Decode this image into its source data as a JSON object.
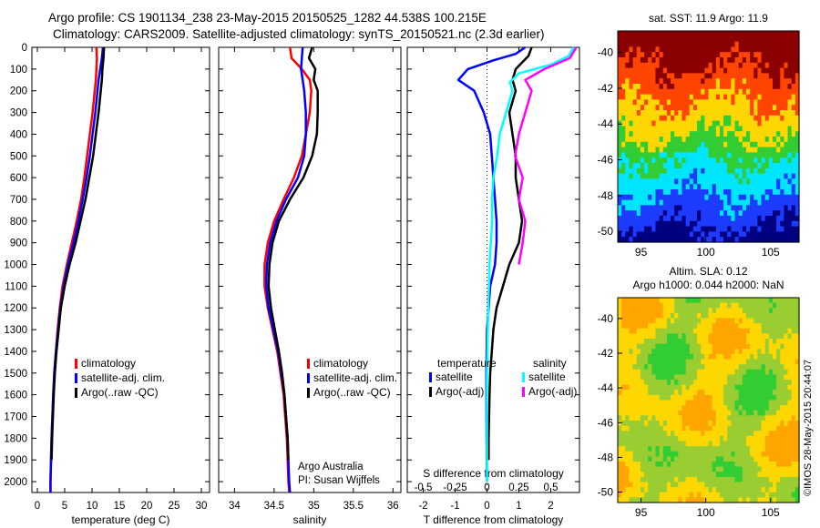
{
  "header": {
    "line1": "Argo profile: CS 1901134_238 23-May-2015 20150525_1282 44.538S 100.215E",
    "line2": "Climatology: CARS2009. Satellite-adjusted climatology: synTS_20150521.nc (2.3d earlier)"
  },
  "colors": {
    "climatology": "#ff0000",
    "satellite": "#0000ff",
    "argo": "#000000",
    "salinity_satellite": "#00ffff",
    "salinity_argo": "#ff00ff"
  },
  "chart_data": [
    {
      "type": "line",
      "panel": "temperature",
      "xlabel": "temperature (deg C)",
      "xlim": [
        -1,
        31.5
      ],
      "xticks": [
        "0",
        "5",
        "10",
        "15",
        "20",
        "25",
        "30"
      ],
      "ylim": [
        0,
        2050
      ],
      "yticks": [
        "0",
        "100",
        "200",
        "300",
        "400",
        "500",
        "600",
        "700",
        "800",
        "900",
        "1000",
        "1100",
        "1200",
        "1300",
        "1400",
        "1500",
        "1600",
        "1700",
        "1800",
        "1900",
        "2000"
      ],
      "y_reversed": true,
      "legend": [
        "climatology",
        "satellite-adj. clim.",
        "Argo(..raw -QC)"
      ],
      "series": [
        {
          "name": "climatology",
          "color": "#ff0000",
          "depth": [
            0,
            50,
            100,
            150,
            200,
            300,
            400,
            500,
            600,
            700,
            800,
            900,
            1000,
            1100,
            1200,
            1300,
            1400,
            1500,
            1600,
            1800,
            2000,
            2050
          ],
          "values": [
            10.8,
            10.9,
            10.8,
            10.7,
            10.5,
            10.1,
            9.6,
            9.1,
            8.6,
            8.0,
            7.2,
            6.3,
            5.4,
            4.6,
            4.1,
            3.7,
            3.4,
            3.1,
            2.9,
            2.6,
            2.4,
            2.4
          ]
        },
        {
          "name": "satellite-adj. clim.",
          "color": "#0000ff",
          "depth": [
            0,
            50,
            100,
            150,
            200,
            300,
            400,
            500,
            600,
            700,
            800,
            900,
            1000,
            1100,
            1200,
            1300,
            1400,
            1500,
            1600,
            1800,
            2000,
            2050
          ],
          "values": [
            12.0,
            11.8,
            11.5,
            11.2,
            11.0,
            10.6,
            10.1,
            9.6,
            9.0,
            8.3,
            7.5,
            6.6,
            5.6,
            4.8,
            4.2,
            3.8,
            3.4,
            3.1,
            2.9,
            2.6,
            2.4,
            2.4
          ]
        },
        {
          "name": "Argo(..raw -QC)",
          "color": "#000000",
          "depth": [
            0,
            50,
            100,
            150,
            200,
            300,
            400,
            500,
            600,
            700,
            800,
            900,
            1000,
            1100,
            1200,
            1300,
            1400,
            1500,
            1600,
            1800,
            1900
          ],
          "values": [
            12.2,
            12.1,
            11.9,
            11.8,
            11.6,
            11.2,
            10.7,
            10.2,
            9.5,
            8.8,
            7.9,
            7.0,
            5.9,
            5.0,
            4.3,
            3.9,
            3.5,
            3.2,
            3.0,
            2.7,
            2.6
          ]
        }
      ]
    },
    {
      "type": "line",
      "panel": "salinity",
      "xlabel": "salinity",
      "xlim": [
        33.8,
        36.1
      ],
      "xticks": [
        "34",
        "34.5",
        "35",
        "35.5",
        "36"
      ],
      "ylim": [
        0,
        2050
      ],
      "y_reversed": true,
      "legend": [
        "climatology",
        "satellite-adj. clim.",
        "Argo(..raw -QC)"
      ],
      "annotation": [
        "Argo Australia",
        "PI: Susan Wijffels"
      ],
      "series": [
        {
          "name": "climatology",
          "color": "#ff0000",
          "depth": [
            0,
            50,
            100,
            150,
            200,
            300,
            400,
            500,
            600,
            700,
            800,
            900,
            1000,
            1100,
            1200,
            1300,
            1400,
            1500,
            1600,
            1700,
            1800,
            1900,
            2000,
            2050
          ],
          "values": [
            34.7,
            34.72,
            34.85,
            34.95,
            34.97,
            34.95,
            34.9,
            34.85,
            34.75,
            34.62,
            34.5,
            34.42,
            34.38,
            34.38,
            34.42,
            34.48,
            34.54,
            34.58,
            34.62,
            34.64,
            34.66,
            34.67,
            34.68,
            34.69
          ]
        },
        {
          "name": "satellite-adj. clim.",
          "color": "#0000ff",
          "depth": [
            0,
            50,
            100,
            150,
            200,
            300,
            400,
            500,
            600,
            700,
            800,
            900,
            1000,
            1100,
            1200,
            1300,
            1400,
            1500,
            1600,
            1700,
            1800,
            1900,
            2000,
            2050
          ],
          "values": [
            34.86,
            34.85,
            34.84,
            34.86,
            34.88,
            34.9,
            34.9,
            34.88,
            34.8,
            34.65,
            34.53,
            34.45,
            34.41,
            34.4,
            34.43,
            34.49,
            34.55,
            34.59,
            34.63,
            34.65,
            34.67,
            34.68,
            34.69,
            34.7
          ]
        },
        {
          "name": "Argo(..raw -QC)",
          "color": "#000000",
          "depth": [
            0,
            50,
            100,
            150,
            200,
            300,
            400,
            500,
            600,
            700,
            800,
            900,
            1000,
            1100,
            1200,
            1300,
            1400,
            1500,
            1600,
            1700,
            1800,
            1900
          ],
          "values": [
            34.98,
            34.94,
            35.02,
            35.0,
            35.05,
            35.05,
            35.04,
            34.98,
            34.87,
            34.7,
            34.56,
            34.48,
            34.44,
            34.43,
            34.46,
            34.51,
            34.56,
            34.6,
            34.63,
            34.65,
            34.67,
            34.68
          ]
        }
      ]
    },
    {
      "type": "line",
      "panel": "difference",
      "xlabel": "T difference from climatology",
      "xlim": [
        -2.5,
        2.9
      ],
      "xticks": [
        "-2",
        "-1",
        "0",
        "1",
        "2"
      ],
      "top_xlabel": "S difference from climatology",
      "top_xticks": [
        "-0.5",
        "-0.25",
        "0",
        "0.25",
        "0.5"
      ],
      "ylim": [
        0,
        2050
      ],
      "y_reversed": true,
      "legend_headers": [
        "temperature",
        "salinity"
      ],
      "legend": [
        "satellite",
        "Argo(-adj)",
        "satellite",
        "Argo(-adj)"
      ],
      "series": [
        {
          "name": "satellite",
          "quantity": "temperature",
          "color": "#0000ff",
          "depth": [
            0,
            30,
            60,
            100,
            150,
            200,
            300,
            400,
            500,
            600,
            700,
            800,
            900,
            1000,
            1100,
            1200,
            1300,
            1500,
            1800,
            2000
          ],
          "values": [
            1.2,
            0.9,
            0.2,
            -0.6,
            -0.9,
            -0.4,
            -0.1,
            0.1,
            0.15,
            0.2,
            0.25,
            0.3,
            0.3,
            0.25,
            0.1,
            0.05,
            0.0,
            -0.02,
            -0.01,
            0.0
          ]
        },
        {
          "name": "Argo(-adj)",
          "quantity": "temperature",
          "color": "#000000",
          "depth": [
            0,
            40,
            100,
            150,
            200,
            300,
            400,
            500,
            600,
            700,
            800,
            900,
            1000,
            1100,
            1200,
            1300,
            1400,
            1500,
            1600,
            1800,
            1900
          ],
          "values": [
            1.4,
            1.3,
            0.9,
            0.8,
            0.9,
            0.7,
            0.8,
            0.9,
            0.9,
            1.0,
            1.1,
            1.0,
            0.7,
            0.5,
            0.3,
            0.2,
            0.15,
            0.1,
            0.08,
            0.05,
            0.05
          ]
        },
        {
          "name": "satellite",
          "quantity": "salinity",
          "color": "#00ffff",
          "depth": [
            0,
            40,
            80,
            120,
            160,
            200,
            300,
            400,
            500,
            600,
            700,
            800,
            900,
            1000,
            1200,
            1500,
            1800,
            2000
          ],
          "values": [
            0.68,
            0.64,
            0.5,
            0.25,
            0.18,
            0.2,
            0.15,
            0.1,
            0.08,
            0.05,
            0.04,
            0.04,
            0.03,
            0.02,
            0.01,
            0.0,
            0.0,
            0.0
          ]
        },
        {
          "name": "Argo(-adj)",
          "quantity": "salinity",
          "color": "#ff00ff",
          "depth": [
            0,
            50,
            100,
            150,
            200,
            300,
            400,
            500,
            600,
            700,
            800,
            900,
            1000
          ],
          "values": [
            0.7,
            0.65,
            0.45,
            0.3,
            0.35,
            0.3,
            0.25,
            0.22,
            0.28,
            0.25,
            0.3,
            0.28,
            0.25
          ]
        }
      ]
    },
    {
      "type": "heatmap",
      "panel": "sst_map",
      "title": "sat. SST: 11.9 Argo: 11.9",
      "xticks": [
        "95",
        "100",
        "105"
      ],
      "yticks": [
        "-40",
        "-42",
        "-44",
        "-46",
        "-48",
        "-50"
      ],
      "xlim": [
        93.2,
        107.2
      ],
      "ylim": [
        -50.6,
        -38.8
      ],
      "colors": [
        "#8b0000",
        "#ff4500",
        "#ffd700",
        "#32cd32",
        "#00e5ff",
        "#1e3cff",
        "#000080"
      ]
    },
    {
      "type": "heatmap",
      "panel": "sla_map",
      "title_lines": [
        "Altim. SLA: 0.12",
        "Argo h1000: 0.044 h2000: NaN"
      ],
      "xticks": [
        "95",
        "100",
        "105"
      ],
      "yticks": [
        "-40",
        "-42",
        "-44",
        "-46",
        "-48",
        "-50"
      ],
      "xlim": [
        93.2,
        107.2
      ],
      "ylim": [
        -50.6,
        -38.8
      ],
      "colors": [
        "#32cd32",
        "#9acd32",
        "#ffd700",
        "#ffa500"
      ]
    }
  ],
  "credit": "©IMOS 28-May-2015 20:44:07"
}
